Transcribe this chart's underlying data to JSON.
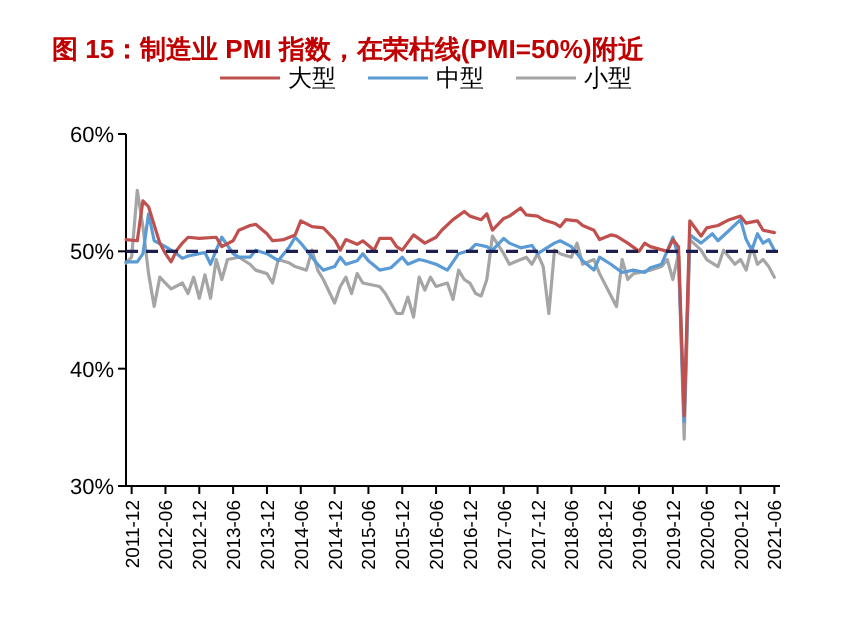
{
  "chart_data": {
    "type": "line",
    "title": "图 15：制造业 PMI 指数，在荣枯线(PMI=50%)附近",
    "legend": "top",
    "xlim": [
      "2011-11",
      "2021-07"
    ],
    "ylim": [
      30,
      60
    ],
    "xticks": [
      "2011-12",
      "2012-06",
      "2012-12",
      "2013-06",
      "2013-12",
      "2014-06",
      "2014-12",
      "2015-06",
      "2015-12",
      "2016-06",
      "2016-12",
      "2017-06",
      "2017-12",
      "2018-06",
      "2018-12",
      "2019-06",
      "2019-12",
      "2020-06",
      "2020-12",
      "2021-06"
    ],
    "yticks": [
      {
        "value": 30,
        "label": "30%"
      },
      {
        "value": 40,
        "label": "40%"
      },
      {
        "value": 50,
        "label": "50%"
      },
      {
        "value": 60,
        "label": "60%"
      }
    ],
    "ref_lines": [
      {
        "axis": "y",
        "value": 50,
        "color": "#1f1f4f",
        "line_style": "dashed"
      }
    ],
    "series": [
      {
        "name": "大型",
        "color": "#c0504d",
        "x": [
          "2011-11",
          "2012-01",
          "2012-02",
          "2012-03",
          "2012-05",
          "2012-06",
          "2012-07",
          "2012-08",
          "2012-09",
          "2012-10",
          "2012-12",
          "2013-03",
          "2013-04",
          "2013-06",
          "2013-07",
          "2013-09",
          "2013-10",
          "2013-12",
          "2014-01",
          "2014-03",
          "2014-05",
          "2014-06",
          "2014-08",
          "2014-10",
          "2014-11",
          "2014-12",
          "2015-01",
          "2015-02",
          "2015-04",
          "2015-05",
          "2015-07",
          "2015-08",
          "2015-10",
          "2015-11",
          "2015-12",
          "2016-02",
          "2016-04",
          "2016-06",
          "2016-07",
          "2016-09",
          "2016-11",
          "2016-12",
          "2017-02",
          "2017-03",
          "2017-04",
          "2017-06",
          "2017-07",
          "2017-09",
          "2017-10",
          "2017-12",
          "2018-01",
          "2018-03",
          "2018-04",
          "2018-05",
          "2018-07",
          "2018-08",
          "2018-10",
          "2018-11",
          "2019-01",
          "2019-02",
          "2019-04",
          "2019-06",
          "2019-07",
          "2019-08",
          "2019-11",
          "2019-12",
          "2020-01",
          "2020-02",
          "2020-03",
          "2020-05",
          "2020-06",
          "2020-08",
          "2020-10",
          "2020-12",
          "2021-01",
          "2021-03",
          "2021-04",
          "2021-05",
          "2021-06"
        ],
        "values": [
          51.0,
          50.9,
          54.3,
          53.8,
          50.7,
          49.8,
          49.1,
          50.1,
          50.7,
          51.2,
          51.1,
          51.2,
          50.4,
          50.9,
          51.8,
          52.2,
          52.3,
          51.5,
          50.9,
          51.0,
          51.4,
          52.6,
          52.1,
          52.0,
          51.5,
          51.0,
          50.1,
          51.0,
          50.6,
          50.9,
          50.1,
          51.1,
          51.1,
          50.4,
          50.1,
          51.4,
          50.7,
          51.2,
          51.8,
          52.7,
          53.4,
          53.0,
          52.7,
          53.2,
          51.8,
          52.8,
          53.0,
          53.7,
          53.1,
          53.0,
          52.7,
          52.4,
          52.1,
          52.7,
          52.6,
          52.2,
          51.8,
          51.0,
          51.4,
          51.3,
          50.7,
          50.0,
          50.7,
          50.4,
          50.0,
          51.0,
          50.4,
          36.0,
          52.6,
          51.3,
          52.0,
          52.2,
          52.7,
          53.0,
          52.4,
          52.6,
          51.8,
          51.7,
          51.6
        ]
      },
      {
        "name": "中型",
        "color": "#5b9bd5",
        "x": [
          "2011-11",
          "2012-01",
          "2012-02",
          "2012-03",
          "2012-04",
          "2012-06",
          "2012-07",
          "2012-08",
          "2012-09",
          "2012-10",
          "2012-12",
          "2013-01",
          "2013-02",
          "2013-03",
          "2013-04",
          "2013-06",
          "2013-07",
          "2013-09",
          "2013-10",
          "2013-12",
          "2014-01",
          "2014-02",
          "2014-04",
          "2014-05",
          "2014-06",
          "2014-08",
          "2014-09",
          "2014-10",
          "2014-12",
          "2015-01",
          "2015-02",
          "2015-04",
          "2015-05",
          "2015-06",
          "2015-08",
          "2015-10",
          "2015-12",
          "2016-01",
          "2016-03",
          "2016-04",
          "2016-06",
          "2016-08",
          "2016-10",
          "2016-12",
          "2017-01",
          "2017-03",
          "2017-04",
          "2017-06",
          "2017-07",
          "2017-09",
          "2017-11",
          "2017-12",
          "2018-03",
          "2018-04",
          "2018-06",
          "2018-08",
          "2018-10",
          "2018-11",
          "2019-01",
          "2019-03",
          "2019-05",
          "2019-07",
          "2019-08",
          "2019-10",
          "2019-12",
          "2020-01",
          "2020-02",
          "2020-03",
          "2020-05",
          "2020-07",
          "2020-08",
          "2020-10",
          "2020-12",
          "2021-01",
          "2021-02",
          "2021-03",
          "2021-04",
          "2021-05",
          "2021-06"
        ],
        "values": [
          49.1,
          49.1,
          49.8,
          53.2,
          50.9,
          50.4,
          50.1,
          49.8,
          49.4,
          49.6,
          49.8,
          49.9,
          48.9,
          50.1,
          51.2,
          49.8,
          49.5,
          49.5,
          50.1,
          49.8,
          49.5,
          49.2,
          50.4,
          51.2,
          50.7,
          49.5,
          48.9,
          48.4,
          48.7,
          49.5,
          48.9,
          49.2,
          49.8,
          49.2,
          48.4,
          48.6,
          49.5,
          48.9,
          49.3,
          49.2,
          48.9,
          48.4,
          49.8,
          50.1,
          50.6,
          50.4,
          50.1,
          51.1,
          50.7,
          50.3,
          50.5,
          49.8,
          50.7,
          50.9,
          50.4,
          49.2,
          48.4,
          49.5,
          48.9,
          48.2,
          48.4,
          48.2,
          48.6,
          48.9,
          51.2,
          49.5,
          35.5,
          51.4,
          50.7,
          51.5,
          50.9,
          51.8,
          52.7,
          51.0,
          50.1,
          51.5,
          50.7,
          51.0,
          50.1
        ]
      },
      {
        "name": "小型",
        "color": "#a5a5a5",
        "x": [
          "2011-11",
          "2011-12",
          "2012-01",
          "2012-02",
          "2012-03",
          "2012-04",
          "2012-05",
          "2012-06",
          "2012-07",
          "2012-09",
          "2012-10",
          "2012-11",
          "2012-12",
          "2013-01",
          "2013-02",
          "2013-03",
          "2013-04",
          "2013-05",
          "2013-07",
          "2013-09",
          "2013-10",
          "2013-12",
          "2014-01",
          "2014-02",
          "2014-04",
          "2014-05",
          "2014-07",
          "2014-08",
          "2014-09",
          "2014-10",
          "2014-12",
          "2015-01",
          "2015-02",
          "2015-03",
          "2015-04",
          "2015-05",
          "2015-08",
          "2015-09",
          "2015-11",
          "2015-12",
          "2016-01",
          "2016-02",
          "2016-03",
          "2016-04",
          "2016-05",
          "2016-06",
          "2016-08",
          "2016-09",
          "2016-10",
          "2016-11",
          "2016-12",
          "2017-01",
          "2017-02",
          "2017-03",
          "2017-04",
          "2017-06",
          "2017-07",
          "2017-09",
          "2017-10",
          "2017-11",
          "2017-12",
          "2018-01",
          "2018-02",
          "2018-03",
          "2018-04",
          "2018-06",
          "2018-07",
          "2018-08",
          "2018-10",
          "2018-11",
          "2019-02",
          "2019-03",
          "2019-04",
          "2019-05",
          "2019-08",
          "2019-10",
          "2019-11",
          "2019-12",
          "2020-01",
          "2020-02",
          "2020-03",
          "2020-05",
          "2020-06",
          "2020-08",
          "2020-09",
          "2020-11",
          "2020-12",
          "2021-01",
          "2021-02",
          "2021-03",
          "2021-04",
          "2021-05",
          "2021-06"
        ],
        "values": [
          49.0,
          49.5,
          55.2,
          52.1,
          48.1,
          45.3,
          47.8,
          47.3,
          46.8,
          47.3,
          46.4,
          47.8,
          46.0,
          48.0,
          46.0,
          49.3,
          47.6,
          49.3,
          49.5,
          48.9,
          48.4,
          48.1,
          47.3,
          49.3,
          49.0,
          48.7,
          48.4,
          50.1,
          48.4,
          47.6,
          45.6,
          47.0,
          47.8,
          46.4,
          48.1,
          47.3,
          47.0,
          46.4,
          44.7,
          44.7,
          46.1,
          44.4,
          47.8,
          46.7,
          47.8,
          47.0,
          47.3,
          45.9,
          48.4,
          47.6,
          47.3,
          46.4,
          46.2,
          47.6,
          51.3,
          49.8,
          48.9,
          49.3,
          49.5,
          48.9,
          49.8,
          48.7,
          44.7,
          50.1,
          49.8,
          49.5,
          50.7,
          48.9,
          49.3,
          48.1,
          45.3,
          49.3,
          47.6,
          48.1,
          48.4,
          48.7,
          49.3,
          47.6,
          49.8,
          34.0,
          51.0,
          50.1,
          49.3,
          48.7,
          50.1,
          48.9,
          49.3,
          48.4,
          50.4,
          48.9,
          49.3,
          48.7,
          47.8
        ]
      }
    ]
  }
}
